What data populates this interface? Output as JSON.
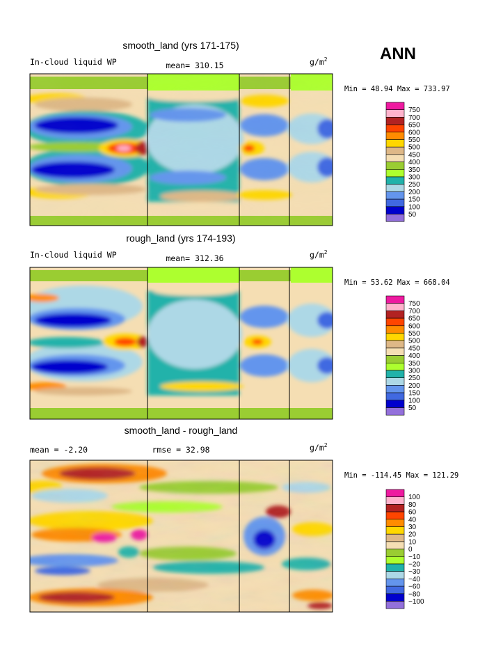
{
  "season": "ANN",
  "chart_data": [
    {
      "type": "heatmap",
      "title": "smooth_land (yrs 171-175)",
      "left_label": "In-cloud liquid WP",
      "center_label": "mean= 310.15",
      "units": "g/m",
      "units_sup": "2",
      "stats": "Min =  48.94 Max = 733.97",
      "min": 48.94,
      "max": 733.97,
      "mean": 310.15,
      "legend_levels": [
        "750",
        "700",
        "650",
        "600",
        "550",
        "500",
        "450",
        "400",
        "350",
        "300",
        "250",
        "200",
        "150",
        "100",
        "50"
      ],
      "colorscale": [
        "#ee1aa0",
        "#ffb3cc",
        "#b22222",
        "#ff4500",
        "#ff8c00",
        "#ffd700",
        "#deb887",
        "#f5deb3",
        "#9acd32",
        "#adff2f",
        "#20b2aa",
        "#add8e6",
        "#6495ed",
        "#4169e1",
        "#0000cd",
        "#9370db"
      ]
    },
    {
      "type": "heatmap",
      "title": "rough_land (yrs 174-193)",
      "left_label": "In-cloud liquid WP",
      "center_label": "mean= 312.36",
      "units": "g/m",
      "units_sup": "2",
      "stats": "Min =  53.62 Max = 668.04",
      "min": 53.62,
      "max": 668.04,
      "mean": 312.36,
      "legend_levels": [
        "750",
        "700",
        "650",
        "600",
        "550",
        "500",
        "450",
        "400",
        "350",
        "300",
        "250",
        "200",
        "150",
        "100",
        "50"
      ],
      "colorscale": [
        "#ee1aa0",
        "#ffb3cc",
        "#b22222",
        "#ff4500",
        "#ff8c00",
        "#ffd700",
        "#deb887",
        "#f5deb3",
        "#9acd32",
        "#adff2f",
        "#20b2aa",
        "#add8e6",
        "#6495ed",
        "#4169e1",
        "#0000cd",
        "#9370db"
      ]
    },
    {
      "type": "heatmap",
      "title": "smooth_land - rough_land",
      "left_label": "mean =  -2.20",
      "center_label": "rmse =  32.98",
      "units": "g/m",
      "units_sup": "2",
      "stats": "Min = -114.45 Max = 121.29",
      "min": -114.45,
      "max": 121.29,
      "mean": -2.2,
      "rmse": 32.98,
      "legend_levels": [
        "100",
        "80",
        "60",
        "40",
        "30",
        "20",
        "10",
        "0",
        "−10",
        "−20",
        "−30",
        "−40",
        "−60",
        "−80",
        "−100"
      ],
      "colorscale": [
        "#ee1aa0",
        "#ffb3cc",
        "#b22222",
        "#ff4500",
        "#ff8c00",
        "#ffd700",
        "#deb887",
        "#f5deb3",
        "#9acd32",
        "#adff2f",
        "#20b2aa",
        "#add8e6",
        "#6495ed",
        "#4169e1",
        "#0000cd",
        "#9370db"
      ]
    }
  ]
}
